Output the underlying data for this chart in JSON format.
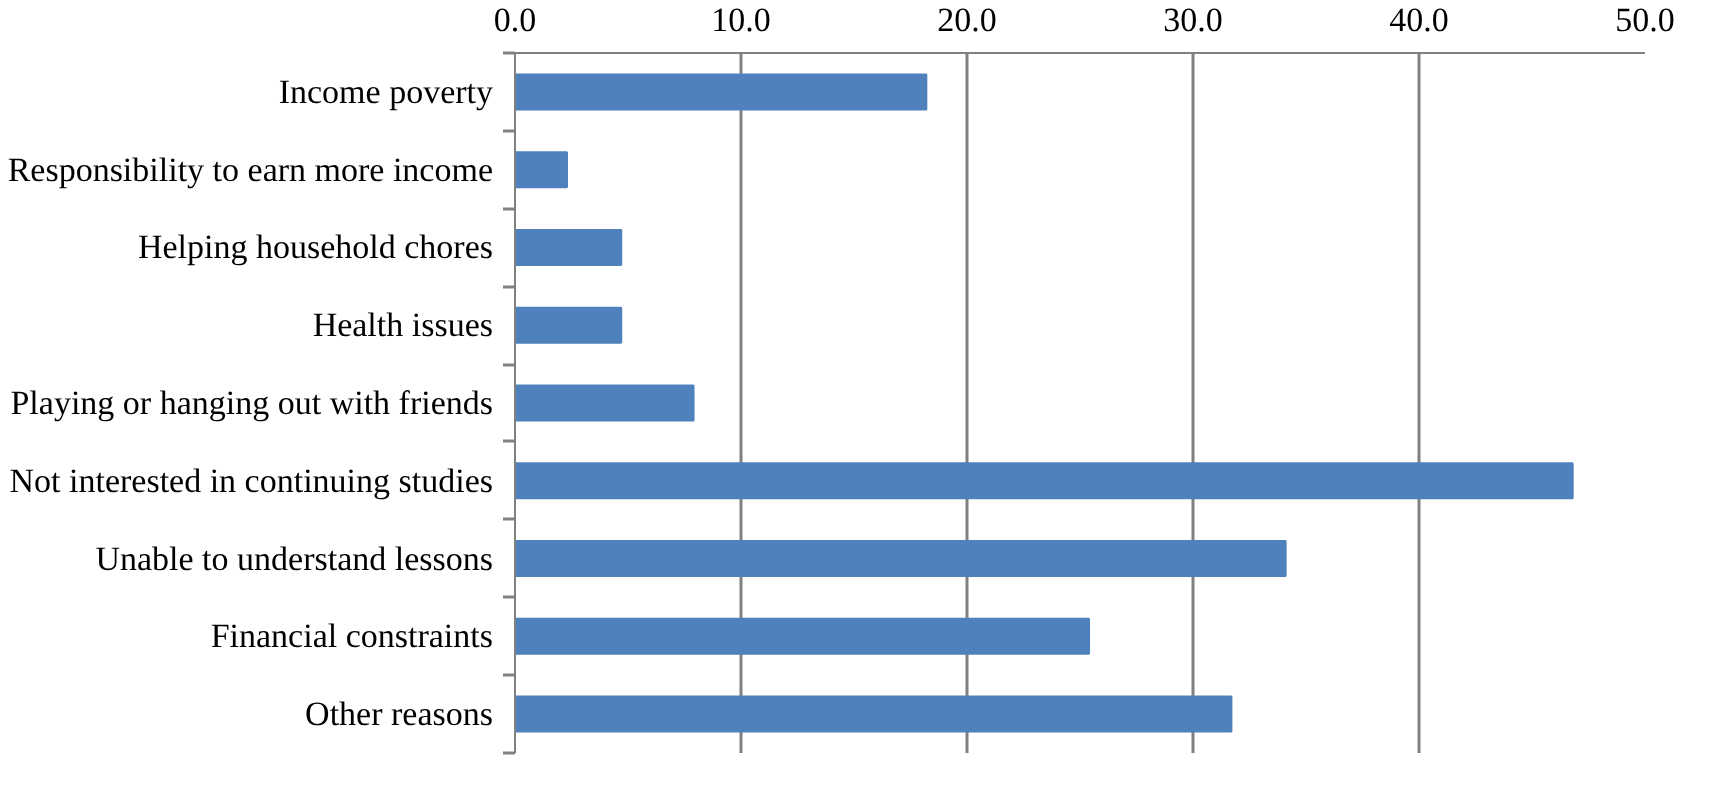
{
  "chart_data": {
    "type": "bar",
    "orientation": "horizontal",
    "categories": [
      "Income poverty",
      "Responsibility to earn more income",
      "Helping household chores",
      "Health issues",
      "Playing or hanging out with friends",
      "Not interested in continuing studies",
      "Unable to understand lessons",
      "Financial constraints",
      "Other reasons"
    ],
    "values": [
      18.2,
      2.3,
      4.7,
      4.7,
      7.9,
      46.8,
      34.1,
      25.4,
      31.7
    ],
    "color": "#4f81bd",
    "xlim": [
      0,
      50
    ],
    "xticks": [
      {
        "value": 0,
        "label": "0.0"
      },
      {
        "value": 10,
        "label": "10.0"
      },
      {
        "value": 20,
        "label": "20.0"
      },
      {
        "value": 30,
        "label": "30.0"
      },
      {
        "value": 40,
        "label": "40.0"
      },
      {
        "value": 50,
        "label": "50.0"
      }
    ],
    "grid": "x"
  }
}
